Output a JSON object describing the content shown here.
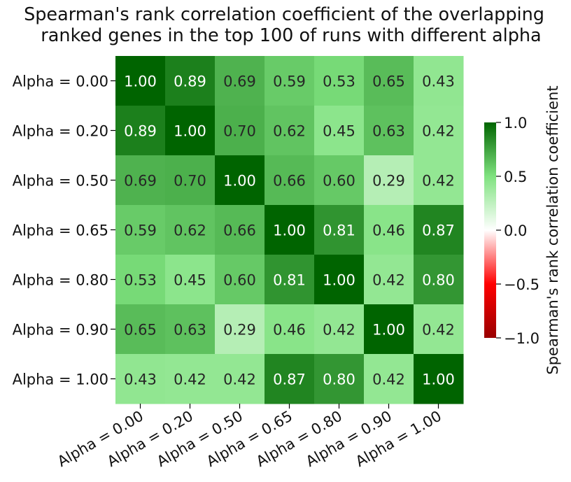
{
  "chart_data": {
    "type": "heatmap",
    "title": [
      "Spearman's rank correlation coefficient of the overlapping",
      "ranked genes in the top 100 of runs with different alpha"
    ],
    "row_labels": [
      "Alpha = 0.00",
      "Alpha = 0.20",
      "Alpha = 0.50",
      "Alpha = 0.65",
      "Alpha = 0.80",
      "Alpha = 0.90",
      "Alpha = 1.00"
    ],
    "col_labels": [
      "Alpha = 0.00",
      "Alpha = 0.20",
      "Alpha = 0.50",
      "Alpha = 0.65",
      "Alpha = 0.80",
      "Alpha = 0.90",
      "Alpha = 1.00"
    ],
    "values": [
      [
        1.0,
        0.89,
        0.69,
        0.59,
        0.53,
        0.65,
        0.43
      ],
      [
        0.89,
        1.0,
        0.7,
        0.62,
        0.45,
        0.63,
        0.42
      ],
      [
        0.69,
        0.7,
        1.0,
        0.66,
        0.6,
        0.29,
        0.42
      ],
      [
        0.59,
        0.62,
        0.66,
        1.0,
        0.81,
        0.46,
        0.87
      ],
      [
        0.53,
        0.45,
        0.6,
        0.81,
        1.0,
        0.42,
        0.8
      ],
      [
        0.65,
        0.63,
        0.29,
        0.46,
        0.42,
        1.0,
        0.42
      ],
      [
        0.43,
        0.42,
        0.42,
        0.87,
        0.8,
        0.42,
        1.0
      ]
    ],
    "value_format": "2 decimals",
    "colorbar": {
      "label": "Spearman's rank correlation coefficient",
      "range": [
        -1.0,
        1.0
      ],
      "ticks": [
        1.0,
        0.5,
        0.0,
        -0.5,
        -1.0
      ],
      "tick_labels": [
        "1.0",
        "0.5",
        "0.0",
        "−0.5",
        "−1.0"
      ],
      "colors": [
        "#990000",
        "#ff0000",
        "#ffffff",
        "#7fe27f",
        "#006400"
      ]
    },
    "x_tick_rotation": "30 degrees",
    "grid": false
  }
}
